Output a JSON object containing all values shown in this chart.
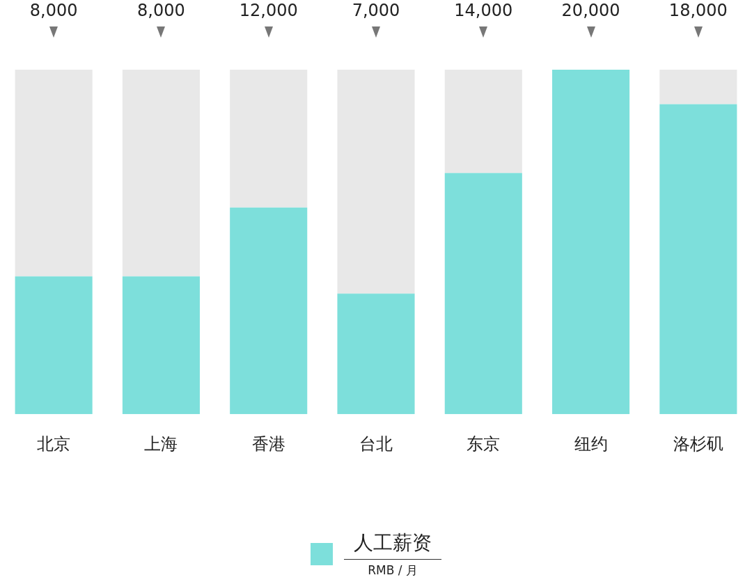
{
  "chart_data": {
    "type": "bar",
    "categories": [
      "北京",
      "上海",
      "香港",
      "台北",
      "东京",
      "纽约",
      "洛杉矶"
    ],
    "series": [
      {
        "name": "人工薪资",
        "color": "#7ddfdb",
        "values": [
          8000,
          8000,
          12000,
          7000,
          14000,
          20000,
          18000
        ],
        "value_labels": [
          "8,000",
          "8,000",
          "12,000",
          "7,000",
          "14,000",
          "20,000",
          "18,000"
        ]
      },
      {
        "color": "#e8e8e8",
        "values": [
          12000,
          12000,
          8000,
          13000,
          6000,
          0,
          2000
        ]
      }
    ],
    "stacked": true,
    "tick_labels": "x",
    "legend": "bottom",
    "annotations": [
      "RMB / 月"
    ]
  }
}
